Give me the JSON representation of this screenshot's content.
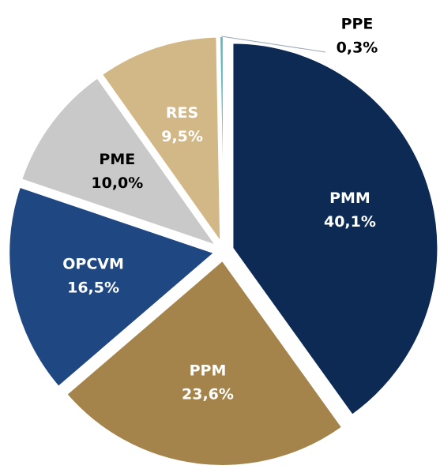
{
  "chart_data": {
    "type": "pie",
    "categories": [
      "PMM",
      "PPM",
      "OPCVM",
      "PME",
      "RES",
      "PPE"
    ],
    "values": [
      40.1,
      23.6,
      16.5,
      10.0,
      9.5,
      0.3
    ],
    "value_labels": [
      "40,1%",
      "23,6%",
      "16,5%",
      "10,0%",
      "9,5%",
      "0,3%"
    ],
    "colors": [
      "#0d2a54",
      "#a4844a",
      "#1f4782",
      "#c9c9c9",
      "#d3b887",
      "#5bbcc4"
    ],
    "label_colors": [
      "#ffffff",
      "#ffffff",
      "#ffffff",
      "#000000",
      "#ffffff",
      "#000000"
    ]
  }
}
